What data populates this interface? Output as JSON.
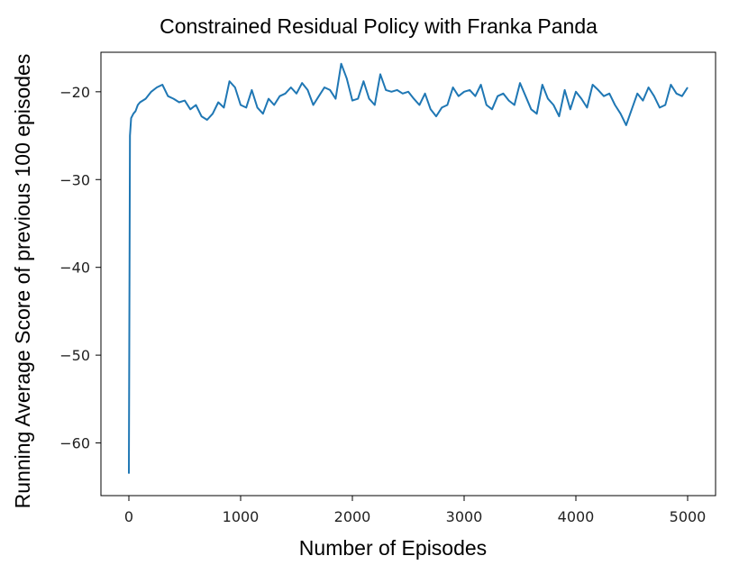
{
  "chart_data": {
    "type": "line",
    "title": "Constrained Residual Policy with Franka Panda",
    "xlabel": "Number of Episodes",
    "ylabel": "Running Average Score of previous 100 episodes",
    "xlim": [
      -250,
      5250
    ],
    "ylim": [
      -66,
      -15.5
    ],
    "xticks": [
      0,
      1000,
      2000,
      3000,
      4000,
      5000
    ],
    "xtick_labels": [
      "0",
      "1000",
      "2000",
      "3000",
      "4000",
      "5000"
    ],
    "yticks": [
      -60,
      -50,
      -40,
      -30,
      -20
    ],
    "ytick_labels": [
      "−60",
      "−50",
      "−40",
      "−30",
      "−20"
    ],
    "grid": false,
    "line_color": "#1f77b4",
    "series": [
      {
        "x": [
          0,
          10,
          20,
          40,
          60,
          80,
          100,
          150,
          200,
          250,
          300,
          350,
          400,
          450,
          500,
          550,
          600,
          650,
          700,
          750,
          800,
          850,
          900,
          950,
          1000,
          1050,
          1100,
          1150,
          1200,
          1250,
          1300,
          1350,
          1400,
          1450,
          1500,
          1550,
          1600,
          1650,
          1700,
          1750,
          1800,
          1850,
          1900,
          1950,
          2000,
          2050,
          2100,
          2150,
          2200,
          2250,
          2300,
          2350,
          2400,
          2450,
          2500,
          2550,
          2600,
          2650,
          2700,
          2750,
          2800,
          2850,
          2900,
          2950,
          3000,
          3050,
          3100,
          3150,
          3200,
          3250,
          3300,
          3350,
          3400,
          3450,
          3500,
          3550,
          3600,
          3650,
          3700,
          3750,
          3800,
          3850,
          3900,
          3950,
          4000,
          4050,
          4100,
          4150,
          4200,
          4250,
          4300,
          4350,
          4400,
          4450,
          4500,
          4550,
          4600,
          4650,
          4700,
          4750,
          4800,
          4850,
          4900,
          4950,
          5000
        ],
        "y": [
          -63.5,
          -25.0,
          -23.0,
          -22.5,
          -22.2,
          -21.5,
          -21.2,
          -20.8,
          -20.0,
          -19.5,
          -19.2,
          -20.5,
          -20.8,
          -21.2,
          -21.0,
          -22.0,
          -21.5,
          -22.8,
          -23.2,
          -22.5,
          -21.2,
          -21.8,
          -18.8,
          -19.5,
          -21.5,
          -21.8,
          -19.8,
          -21.8,
          -22.5,
          -20.8,
          -21.5,
          -20.5,
          -20.2,
          -19.5,
          -20.2,
          -19.0,
          -19.8,
          -21.5,
          -20.5,
          -19.5,
          -19.8,
          -20.8,
          -16.8,
          -18.5,
          -21.0,
          -20.8,
          -18.8,
          -20.8,
          -21.5,
          -18.0,
          -19.8,
          -20.0,
          -19.8,
          -20.2,
          -20.0,
          -20.8,
          -21.5,
          -20.2,
          -22.0,
          -22.8,
          -21.8,
          -21.5,
          -19.5,
          -20.5,
          -20.0,
          -19.8,
          -20.5,
          -19.2,
          -21.5,
          -22.0,
          -20.5,
          -20.2,
          -21.0,
          -21.5,
          -19.0,
          -20.5,
          -22.0,
          -22.5,
          -19.2,
          -20.8,
          -21.5,
          -22.8,
          -19.8,
          -22.0,
          -20.0,
          -20.8,
          -21.8,
          -19.2,
          -19.8,
          -20.5,
          -20.2,
          -21.5,
          -22.5,
          -23.8,
          -22.0,
          -20.2,
          -21.0,
          -19.5,
          -20.5,
          -21.8,
          -21.5,
          -19.2,
          -20.2,
          -20.5,
          -19.5
        ]
      }
    ]
  }
}
